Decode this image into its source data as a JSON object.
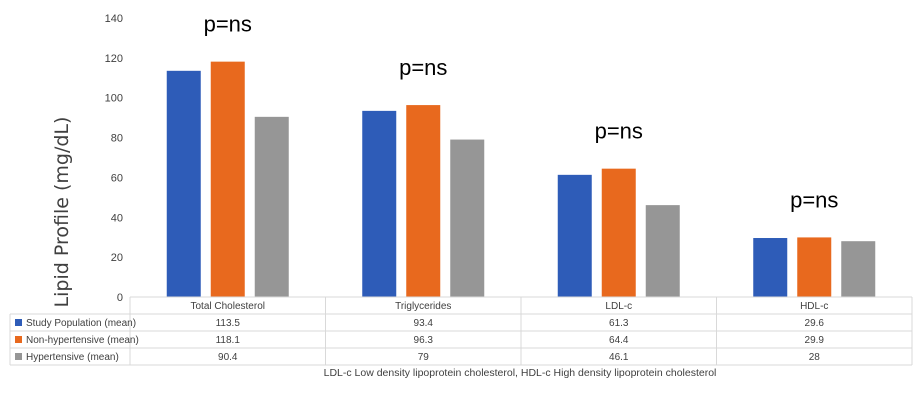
{
  "chart_data": {
    "type": "bar",
    "title": "",
    "xlabel": "",
    "ylabel": "Lipid Profile (mg/dL)",
    "ylim": [
      0,
      140
    ],
    "yticks": [
      0,
      20,
      40,
      60,
      80,
      100,
      120,
      140
    ],
    "grid": false,
    "legend": "data-table-below",
    "categories": [
      "Total Cholesterol",
      "Triglycerides",
      "LDL-c",
      "HDL-c"
    ],
    "series": [
      {
        "name": "Study Population (mean)",
        "color": "#2e5cb8",
        "values": [
          113.5,
          93.4,
          61.3,
          29.6
        ],
        "labels": [
          "113.5",
          "93.4",
          "61.3",
          "29.6"
        ]
      },
      {
        "name": "Non-hypertensive (mean)",
        "color": "#e8691e",
        "values": [
          118.1,
          96.3,
          64.4,
          29.9
        ],
        "labels": [
          "118.1",
          "96.3",
          "64.4",
          "29.9"
        ]
      },
      {
        "name": "Hypertensive (mean)",
        "color": "#969696",
        "values": [
          90.4,
          79,
          46.1,
          28
        ],
        "labels": [
          "90.4",
          "79",
          "46.1",
          "28"
        ]
      }
    ],
    "annotations": [
      "p=ns",
      "p=ns",
      "p=ns",
      "p=ns"
    ],
    "footnote": "LDL-c Low density lipoprotein cholesterol, HDL-c High density lipoprotein cholesterol"
  }
}
